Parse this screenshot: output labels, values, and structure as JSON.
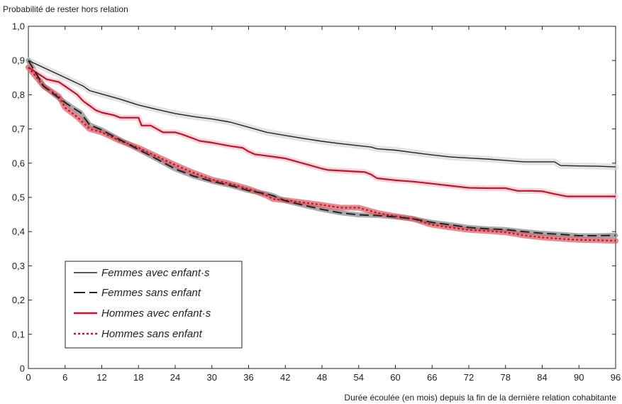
{
  "chart_data": {
    "type": "line",
    "ylabel": "Probabilité de rester hors relation",
    "xlabel": "Durée écoulée (en mois) depuis la fin de la dernière relation cohabitante",
    "xlim": [
      0,
      96
    ],
    "ylim": [
      0,
      1
    ],
    "x_ticks": [
      "0",
      "6",
      "12",
      "18",
      "24",
      "30",
      "36",
      "42",
      "48",
      "54",
      "60",
      "66",
      "72",
      "78",
      "84",
      "90",
      "96"
    ],
    "y_ticks": [
      "0",
      "0,1",
      "0,2",
      "0,3",
      "0,4",
      "0,5",
      "0,6",
      "0,7",
      "0,8",
      "0,9",
      "1,0"
    ],
    "legend_position": "bottom-left",
    "series": [
      {
        "name": "Femmes avec enfant·s",
        "color": "#222222",
        "band_color": "#d9d9d9",
        "dash": "solid",
        "points": [
          [
            0,
            0.9
          ],
          [
            3,
            0.875
          ],
          [
            6,
            0.85
          ],
          [
            9,
            0.825
          ],
          [
            10,
            0.812
          ],
          [
            12,
            0.802
          ],
          [
            15,
            0.787
          ],
          [
            18,
            0.77
          ],
          [
            21,
            0.757
          ],
          [
            24,
            0.745
          ],
          [
            27,
            0.736
          ],
          [
            30,
            0.729
          ],
          [
            33,
            0.72
          ],
          [
            36,
            0.705
          ],
          [
            39,
            0.69
          ],
          [
            42,
            0.681
          ],
          [
            45,
            0.672
          ],
          [
            48,
            0.664
          ],
          [
            51,
            0.657
          ],
          [
            54,
            0.651
          ],
          [
            56,
            0.647
          ],
          [
            57,
            0.642
          ],
          [
            60,
            0.638
          ],
          [
            63,
            0.631
          ],
          [
            66,
            0.624
          ],
          [
            69,
            0.618
          ],
          [
            72,
            0.615
          ],
          [
            75,
            0.612
          ],
          [
            78,
            0.608
          ],
          [
            81,
            0.604
          ],
          [
            84,
            0.604
          ],
          [
            86,
            0.604
          ],
          [
            87,
            0.593
          ],
          [
            90,
            0.592
          ],
          [
            93,
            0.591
          ],
          [
            96,
            0.589
          ]
        ]
      },
      {
        "name": "Femmes sans enfant",
        "color": "#222222",
        "band_color": "#9a9a9a",
        "dash": "long-dash",
        "points": [
          [
            0,
            0.9
          ],
          [
            2.5,
            0.825
          ],
          [
            5,
            0.79
          ],
          [
            7,
            0.765
          ],
          [
            8.5,
            0.748
          ],
          [
            10,
            0.712
          ],
          [
            12,
            0.697
          ],
          [
            15,
            0.668
          ],
          [
            18,
            0.64
          ],
          [
            21,
            0.612
          ],
          [
            24,
            0.583
          ],
          [
            27,
            0.562
          ],
          [
            30,
            0.547
          ],
          [
            33,
            0.535
          ],
          [
            36,
            0.52
          ],
          [
            39,
            0.51
          ],
          [
            40,
            0.505
          ],
          [
            41,
            0.497
          ],
          [
            42,
            0.49
          ],
          [
            45,
            0.477
          ],
          [
            48,
            0.465
          ],
          [
            51,
            0.455
          ],
          [
            54,
            0.449
          ],
          [
            57,
            0.447
          ],
          [
            60,
            0.443
          ],
          [
            63,
            0.437
          ],
          [
            66,
            0.427
          ],
          [
            69,
            0.42
          ],
          [
            72,
            0.412
          ],
          [
            75,
            0.408
          ],
          [
            78,
            0.406
          ],
          [
            81,
            0.4
          ],
          [
            84,
            0.395
          ],
          [
            87,
            0.392
          ],
          [
            90,
            0.388
          ],
          [
            93,
            0.388
          ],
          [
            96,
            0.389
          ]
        ]
      },
      {
        "name": "Hommes avec enfant·s",
        "color": "#c0152f",
        "band_color": "#f2cdd2",
        "dash": "solid",
        "points": [
          [
            0,
            0.88
          ],
          [
            3,
            0.845
          ],
          [
            5,
            0.837
          ],
          [
            6,
            0.825
          ],
          [
            8,
            0.8
          ],
          [
            9,
            0.781
          ],
          [
            10,
            0.768
          ],
          [
            11,
            0.755
          ],
          [
            12,
            0.748
          ],
          [
            14,
            0.74
          ],
          [
            15,
            0.733
          ],
          [
            18,
            0.733
          ],
          [
            18.5,
            0.71
          ],
          [
            20,
            0.71
          ],
          [
            21,
            0.7
          ],
          [
            22,
            0.69
          ],
          [
            24,
            0.69
          ],
          [
            25,
            0.685
          ],
          [
            27,
            0.672
          ],
          [
            28,
            0.665
          ],
          [
            30,
            0.66
          ],
          [
            33,
            0.65
          ],
          [
            35,
            0.645
          ],
          [
            36,
            0.634
          ],
          [
            37,
            0.626
          ],
          [
            40,
            0.619
          ],
          [
            42,
            0.614
          ],
          [
            44,
            0.604
          ],
          [
            46,
            0.594
          ],
          [
            48,
            0.584
          ],
          [
            49,
            0.58
          ],
          [
            51,
            0.578
          ],
          [
            53,
            0.576
          ],
          [
            55,
            0.574
          ],
          [
            56,
            0.567
          ],
          [
            57,
            0.556
          ],
          [
            60,
            0.55
          ],
          [
            63,
            0.546
          ],
          [
            66,
            0.54
          ],
          [
            69,
            0.534
          ],
          [
            72,
            0.528
          ],
          [
            75,
            0.527
          ],
          [
            78,
            0.527
          ],
          [
            80,
            0.519
          ],
          [
            82,
            0.519
          ],
          [
            84,
            0.518
          ],
          [
            86,
            0.51
          ],
          [
            88,
            0.503
          ],
          [
            90,
            0.503
          ],
          [
            93,
            0.503
          ],
          [
            96,
            0.503
          ]
        ]
      },
      {
        "name": "Hommes sans enfant",
        "color": "#c0152f",
        "band_color": "#d9585f",
        "dash": "dotted",
        "points": [
          [
            0,
            0.88
          ],
          [
            2.5,
            0.825
          ],
          [
            5,
            0.795
          ],
          [
            6,
            0.762
          ],
          [
            8,
            0.735
          ],
          [
            10,
            0.7
          ],
          [
            12,
            0.69
          ],
          [
            15,
            0.665
          ],
          [
            18,
            0.645
          ],
          [
            21,
            0.62
          ],
          [
            24,
            0.595
          ],
          [
            27,
            0.572
          ],
          [
            30,
            0.552
          ],
          [
            33,
            0.54
          ],
          [
            36,
            0.525
          ],
          [
            39,
            0.505
          ],
          [
            40,
            0.495
          ],
          [
            42,
            0.492
          ],
          [
            45,
            0.485
          ],
          [
            48,
            0.478
          ],
          [
            51,
            0.47
          ],
          [
            53,
            0.47
          ],
          [
            54,
            0.47
          ],
          [
            56,
            0.46
          ],
          [
            57,
            0.455
          ],
          [
            60,
            0.445
          ],
          [
            63,
            0.437
          ],
          [
            65,
            0.425
          ],
          [
            66,
            0.42
          ],
          [
            69,
            0.412
          ],
          [
            72,
            0.405
          ],
          [
            75,
            0.402
          ],
          [
            78,
            0.398
          ],
          [
            81,
            0.389
          ],
          [
            84,
            0.383
          ],
          [
            87,
            0.379
          ],
          [
            90,
            0.376
          ],
          [
            93,
            0.375
          ],
          [
            96,
            0.373
          ]
        ]
      }
    ]
  }
}
